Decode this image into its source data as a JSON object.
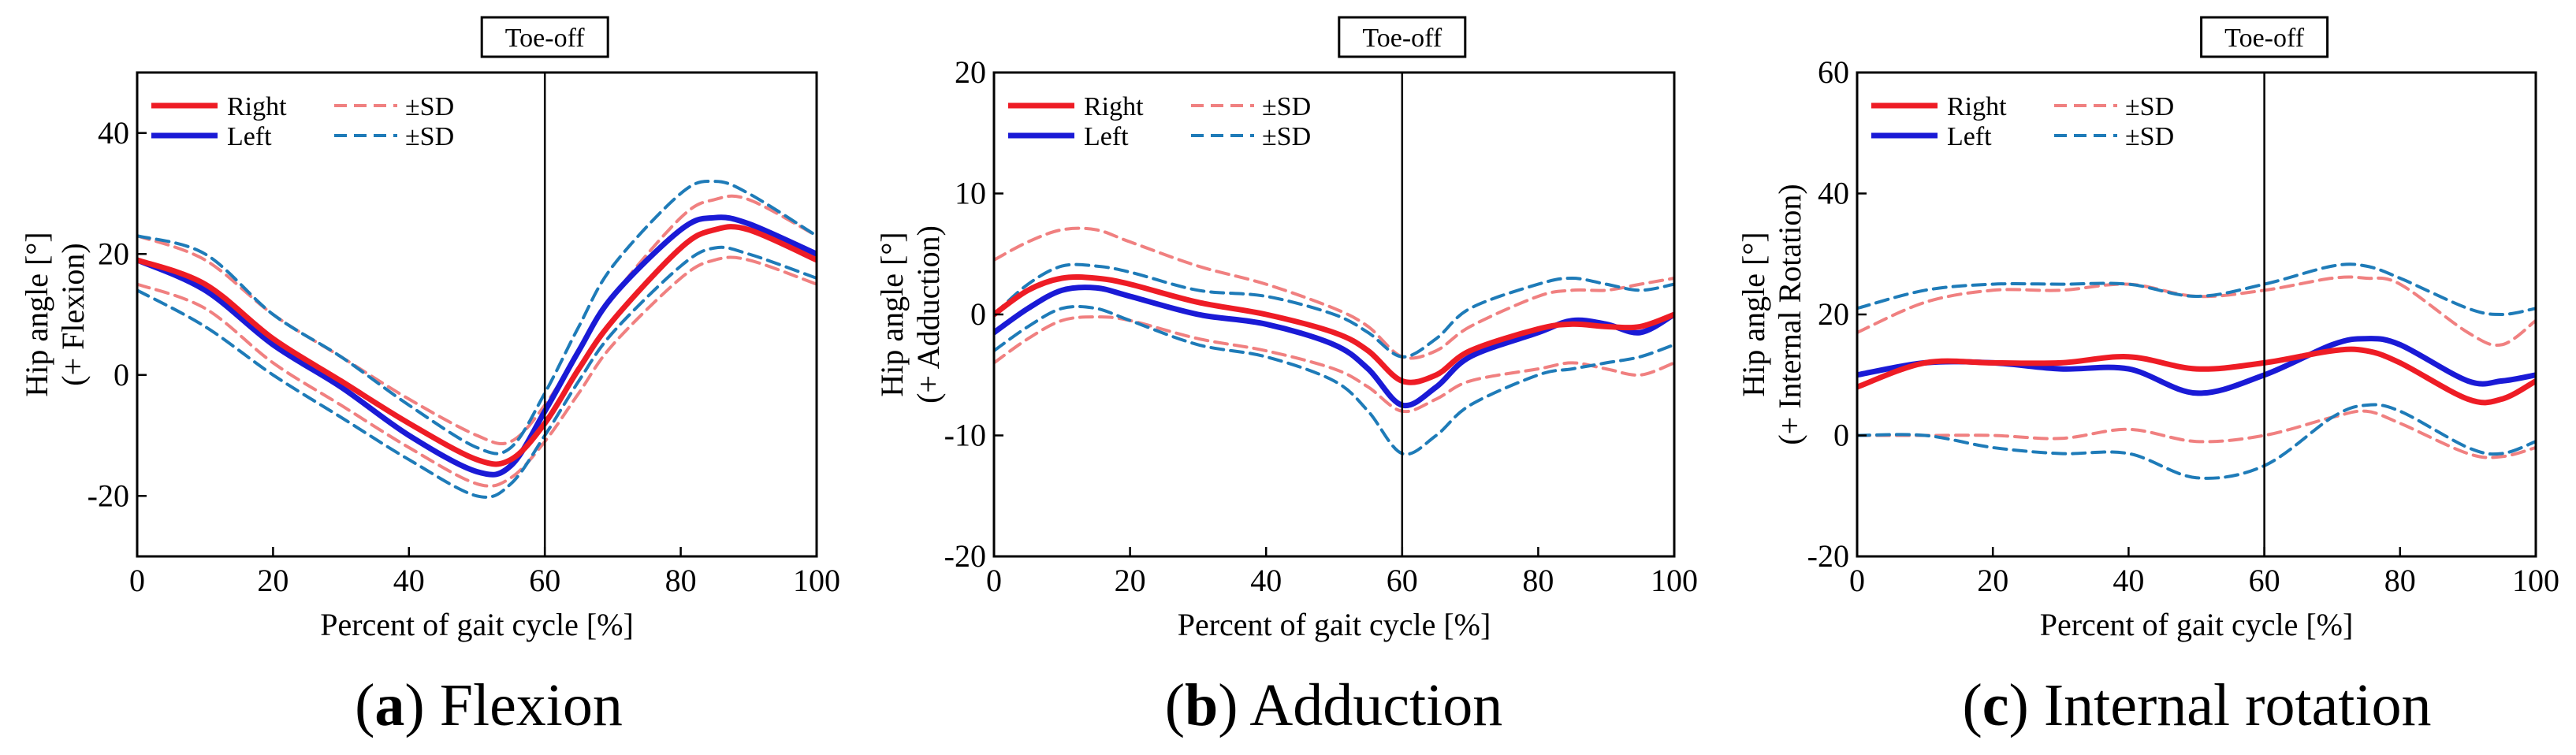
{
  "figure": {
    "panels": [
      {
        "caption_letter": "a",
        "caption_text": "Flexion",
        "ylabel_line1": "Hip angle [°]",
        "ylabel_line2": "(+ Flexion)"
      },
      {
        "caption_letter": "b",
        "caption_text": "Adduction",
        "ylabel_line1": "Hip angle [°]",
        "ylabel_line2": "(+ Adduction)"
      },
      {
        "caption_letter": "c",
        "caption_text": "Internal rotation",
        "ylabel_line1": "Hip angle [°]",
        "ylabel_line2": "(+ Internal Rotation)"
      }
    ],
    "legend": {
      "right": "Right",
      "left": "Left",
      "sd": "±SD"
    },
    "toeoff_label": "Toe-off",
    "xlabel": "Percent of gait cycle [%]"
  },
  "colors": {
    "right": "#ee1c25",
    "left": "#1a1ad6",
    "right_sd": "#f08080",
    "left_sd": "#1e7bb8",
    "axis": "#000000"
  },
  "chart_data": [
    {
      "type": "line",
      "title": "(a) Flexion",
      "xlabel": "Percent of gait cycle [%]",
      "ylabel": "Hip angle [°] (+ Flexion)",
      "xlim": [
        0,
        100
      ],
      "ylim": [
        -30,
        50
      ],
      "xticks": [
        0,
        20,
        40,
        60,
        80,
        100
      ],
      "yticks": [
        -20,
        0,
        20,
        40
      ],
      "toe_off": 60,
      "x": [
        0,
        10,
        20,
        30,
        40,
        50,
        55,
        60,
        65,
        70,
        80,
        85,
        90,
        100
      ],
      "series": [
        {
          "name": "Right",
          "values": [
            19,
            15,
            6,
            -1,
            -8,
            -14,
            -14,
            -8,
            1,
            9,
            21,
            24,
            24,
            19
          ]
        },
        {
          "name": "Left",
          "values": [
            19,
            14,
            5,
            -2,
            -10,
            -16,
            -15,
            -6,
            4,
            13,
            24,
            26,
            25,
            20
          ]
        },
        {
          "name": "Right +SD",
          "values": [
            23,
            19,
            10,
            3,
            -4,
            -10,
            -11,
            -5,
            4,
            13,
            26,
            29,
            29,
            23
          ]
        },
        {
          "name": "Right -SD",
          "values": [
            15,
            11,
            2,
            -5,
            -12,
            -18,
            -17,
            -11,
            -3,
            5,
            16,
            19,
            19,
            15
          ]
        },
        {
          "name": "Left +SD",
          "values": [
            23,
            20,
            10,
            3,
            -5,
            -12,
            -12,
            -3,
            8,
            18,
            30,
            32,
            30,
            23
          ]
        },
        {
          "name": "Left -SD",
          "values": [
            14,
            8,
            0,
            -7,
            -14,
            -20,
            -18,
            -10,
            -1,
            7,
            18,
            21,
            20,
            16
          ]
        }
      ]
    },
    {
      "type": "line",
      "title": "(b) Adduction",
      "xlabel": "Percent of gait cycle [%]",
      "ylabel": "Hip angle [°] (+ Adduction)",
      "xlim": [
        0,
        100
      ],
      "ylim": [
        -20,
        20
      ],
      "xticks": [
        0,
        20,
        40,
        60,
        80,
        100
      ],
      "yticks": [
        -20,
        -10,
        0,
        10,
        20
      ],
      "toe_off": 60,
      "x": [
        0,
        5,
        10,
        15,
        20,
        30,
        40,
        50,
        55,
        60,
        65,
        70,
        80,
        85,
        90,
        95,
        100
      ],
      "series": [
        {
          "name": "Right",
          "values": [
            0,
            2,
            3,
            3,
            2.5,
            1,
            0,
            -1.5,
            -3,
            -5.5,
            -5,
            -3,
            -1.2,
            -0.8,
            -1,
            -1,
            0
          ]
        },
        {
          "name": "Left",
          "values": [
            -1.5,
            0.5,
            2,
            2.2,
            1.5,
            0,
            -0.8,
            -2.5,
            -4.5,
            -7.5,
            -6,
            -3.5,
            -1.5,
            -0.5,
            -0.8,
            -1.5,
            0
          ]
        },
        {
          "name": "Right +SD",
          "values": [
            4.5,
            6,
            7,
            7,
            6,
            4,
            2.5,
            0.5,
            -1,
            -3.5,
            -3,
            -1,
            1.5,
            2,
            2,
            2.5,
            3
          ]
        },
        {
          "name": "Right -SD",
          "values": [
            -4,
            -2,
            -0.5,
            -0.2,
            -0.5,
            -2,
            -3,
            -4.5,
            -6,
            -8,
            -7,
            -5.5,
            -4.5,
            -4,
            -4.5,
            -5,
            -4
          ]
        },
        {
          "name": "Left +SD",
          "values": [
            0,
            2.5,
            4,
            4,
            3.5,
            2,
            1.5,
            0,
            -1.5,
            -3.5,
            -2,
            0.5,
            2.5,
            3,
            2.5,
            2,
            2.5
          ]
        },
        {
          "name": "Left -SD",
          "values": [
            -3,
            -1,
            0.5,
            0.5,
            -0.5,
            -2.5,
            -3.5,
            -5.5,
            -8,
            -11.5,
            -10,
            -7.5,
            -5,
            -4.5,
            -4,
            -3.5,
            -2.5
          ]
        }
      ]
    },
    {
      "type": "line",
      "title": "(c) Internal rotation",
      "xlabel": "Percent of gait cycle [%]",
      "ylabel": "Hip angle [°] (+ Internal Rotation)",
      "xlim": [
        0,
        100
      ],
      "ylim": [
        -20,
        60
      ],
      "xticks": [
        0,
        20,
        40,
        60,
        80,
        100
      ],
      "yticks": [
        -20,
        0,
        20,
        40,
        60
      ],
      "toe_off": 60,
      "x": [
        0,
        10,
        20,
        30,
        40,
        50,
        60,
        70,
        75,
        80,
        90,
        95,
        100
      ],
      "series": [
        {
          "name": "Right",
          "values": [
            8,
            12,
            12,
            12,
            13,
            11,
            12,
            14,
            14,
            12,
            6,
            6,
            9
          ]
        },
        {
          "name": "Left",
          "values": [
            10,
            12,
            12,
            11,
            11,
            7,
            10,
            15,
            16,
            15,
            9,
            9,
            10
          ]
        },
        {
          "name": "Right +SD",
          "values": [
            17,
            22,
            24,
            24,
            25,
            23,
            24,
            26,
            26,
            25,
            17,
            15,
            19
          ]
        },
        {
          "name": "Right -SD",
          "values": [
            0,
            0,
            0,
            -0.5,
            1,
            -1,
            0,
            3,
            4,
            2,
            -3,
            -3.5,
            -2
          ]
        },
        {
          "name": "Left +SD",
          "values": [
            21,
            24,
            25,
            25,
            25,
            23,
            25,
            28,
            28,
            26,
            21,
            20,
            21
          ]
        },
        {
          "name": "Left -SD",
          "values": [
            0,
            0,
            -2,
            -3,
            -3,
            -7,
            -5,
            3,
            5,
            4,
            -2,
            -3,
            -1
          ]
        }
      ]
    }
  ]
}
